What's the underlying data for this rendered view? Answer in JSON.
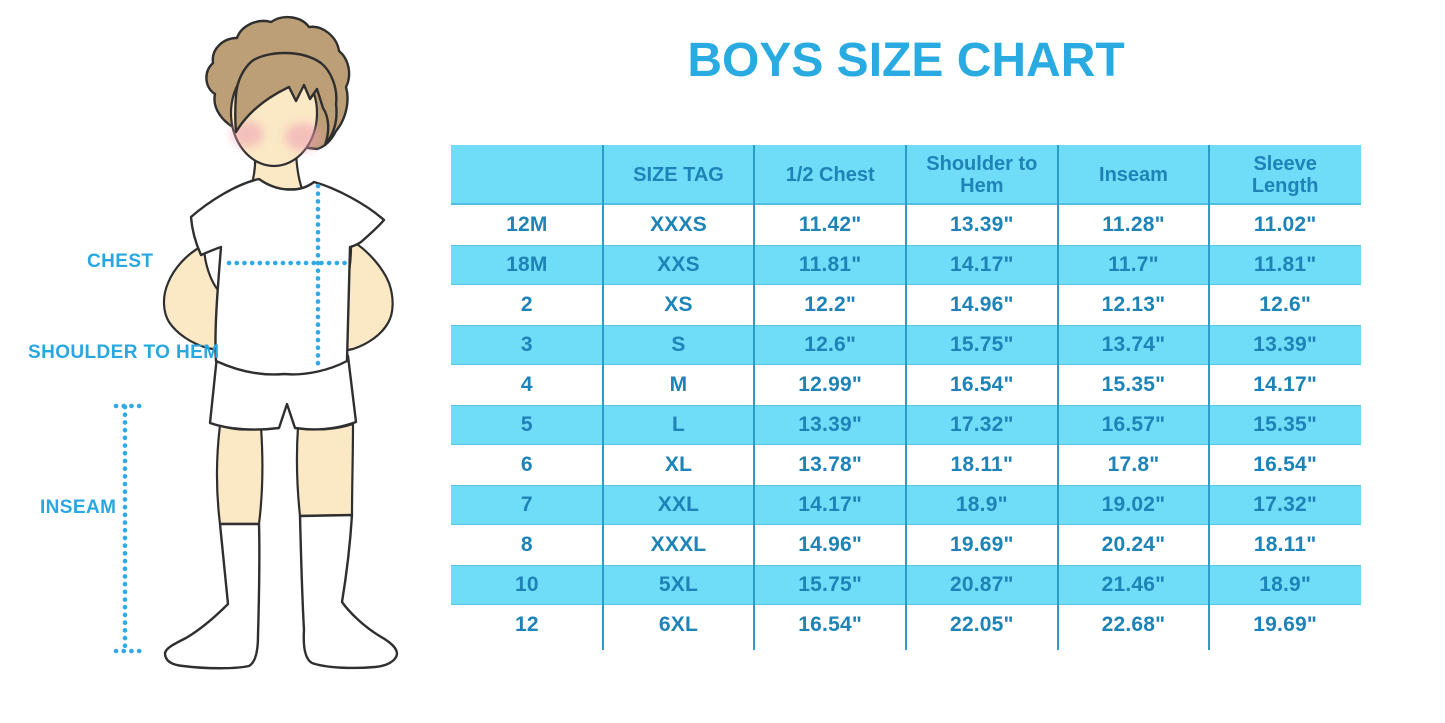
{
  "header": {
    "title": "BOYS SIZE CHART",
    "title_color": "#29ABE2"
  },
  "figure": {
    "description": "cartoon boy in white t-shirt, white shorts and knee socks with hands behind back",
    "labels": {
      "chest": "CHEST",
      "shoulder_to_hem": "SHOULDER TO HEM",
      "inseam": "INSEAM"
    },
    "colors": {
      "label_blue": "#29A7E0",
      "dotted_line_blue": "#2FAAE6",
      "hair": "#BC9E77",
      "skin": "#FBE8C5",
      "cheek_pink": "#EE9FB2",
      "outline": "#2F2F2F",
      "clothing": "#FFFFFF"
    }
  },
  "size_chart_colors": {
    "stripe_blue": "#6FDDF8",
    "divider_blue": "#2B9BC9",
    "text_blue": "#1E83B6"
  },
  "chart_data": {
    "type": "table",
    "title": "BOYS SIZE CHART",
    "units": "inches",
    "columns": [
      "",
      "SIZE TAG",
      "1/2 Chest",
      "Shoulder to Hem",
      "Inseam",
      "Sleeve Length"
    ],
    "rows": [
      [
        "12M",
        "XXXS",
        "11.42\"",
        "13.39\"",
        "11.28\"",
        "11.02\""
      ],
      [
        "18M",
        "XXS",
        "11.81\"",
        "14.17\"",
        "11.7\"",
        "11.81\""
      ],
      [
        "2",
        "XS",
        "12.2\"",
        "14.96\"",
        "12.13\"",
        "12.6\""
      ],
      [
        "3",
        "S",
        "12.6\"",
        "15.75\"",
        "13.74\"",
        "13.39\""
      ],
      [
        "4",
        "M",
        "12.99\"",
        "16.54\"",
        "15.35\"",
        "14.17\""
      ],
      [
        "5",
        "L",
        "13.39\"",
        "17.32\"",
        "16.57\"",
        "15.35\""
      ],
      [
        "6",
        "XL",
        "13.78\"",
        "18.11\"",
        "17.8\"",
        "16.54\""
      ],
      [
        "7",
        "XXL",
        "14.17\"",
        "18.9\"",
        "19.02\"",
        "17.32\""
      ],
      [
        "8",
        "XXXL",
        "14.96\"",
        "19.69\"",
        "20.24\"",
        "18.11\""
      ],
      [
        "10",
        "5XL",
        "15.75\"",
        "20.87\"",
        "21.46\"",
        "18.9\""
      ],
      [
        "12",
        "6XL",
        "16.54\"",
        "22.05\"",
        "22.68\"",
        "19.69\""
      ]
    ],
    "layout": {
      "striping": "alternating white and light blue rows, first data row white",
      "grid": "vertical column dividers only"
    }
  }
}
